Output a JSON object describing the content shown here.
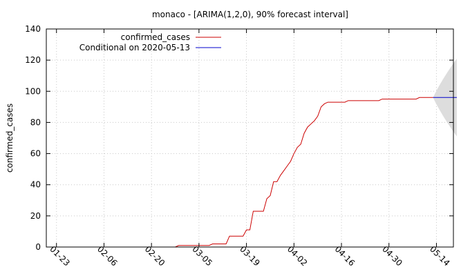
{
  "chart_data": {
    "type": "line",
    "title": "monaco -  [ARIMA(1,2,0), 90% forecast interval]",
    "xlabel": "",
    "ylabel": "confirmed_cases",
    "ylim": [
      0,
      140
    ],
    "yticks": [
      0,
      20,
      40,
      60,
      80,
      100,
      120,
      140
    ],
    "xlim": [
      "2020-01-20",
      "2020-05-19"
    ],
    "xticks": [
      "2020-01-23",
      "2020-02-06",
      "2020-02-20",
      "2020-03-05",
      "2020-03-19",
      "2020-04-02",
      "2020-04-16",
      "2020-04-30",
      "2020-05-14"
    ],
    "xtick_labels": [
      "01-23",
      "02-06",
      "02-20",
      "03-05",
      "03-19",
      "04-02",
      "04-16",
      "04-30",
      "05-14"
    ],
    "grid": true,
    "legend_position": "top-left",
    "series": [
      {
        "name": "confirmed_cases",
        "color": "#cc0000",
        "points": [
          [
            "2020-02-27",
            0
          ],
          [
            "2020-02-28",
            1
          ],
          [
            "2020-03-08",
            1
          ],
          [
            "2020-03-09",
            2
          ],
          [
            "2020-03-13",
            2
          ],
          [
            "2020-03-14",
            7
          ],
          [
            "2020-03-18",
            7
          ],
          [
            "2020-03-19",
            11
          ],
          [
            "2020-03-20",
            11
          ],
          [
            "2020-03-21",
            23
          ],
          [
            "2020-03-24",
            23
          ],
          [
            "2020-03-25",
            31
          ],
          [
            "2020-03-26",
            33
          ],
          [
            "2020-03-27",
            42
          ],
          [
            "2020-03-28",
            42
          ],
          [
            "2020-03-29",
            46
          ],
          [
            "2020-03-30",
            49
          ],
          [
            "2020-03-31",
            52
          ],
          [
            "2020-04-01",
            55
          ],
          [
            "2020-04-02",
            60
          ],
          [
            "2020-04-03",
            64
          ],
          [
            "2020-04-04",
            66
          ],
          [
            "2020-04-05",
            73
          ],
          [
            "2020-04-06",
            77
          ],
          [
            "2020-04-07",
            79
          ],
          [
            "2020-04-08",
            81
          ],
          [
            "2020-04-09",
            84
          ],
          [
            "2020-04-10",
            90
          ],
          [
            "2020-04-11",
            92
          ],
          [
            "2020-04-12",
            93
          ],
          [
            "2020-04-17",
            93
          ],
          [
            "2020-04-18",
            94
          ],
          [
            "2020-04-27",
            94
          ],
          [
            "2020-04-28",
            95
          ],
          [
            "2020-05-08",
            95
          ],
          [
            "2020-05-09",
            96
          ],
          [
            "2020-05-13",
            96
          ]
        ]
      },
      {
        "name": "Conditional on 2020-05-13",
        "color": "#0000cc",
        "points": [
          [
            "2020-05-13",
            96
          ],
          [
            "2020-05-20",
            96
          ]
        ]
      }
    ],
    "forecast_interval": {
      "color": "#dddddd",
      "start": "2020-05-13",
      "end": "2020-05-20",
      "center": 96,
      "upper_end": 121,
      "lower_end": 71
    }
  }
}
